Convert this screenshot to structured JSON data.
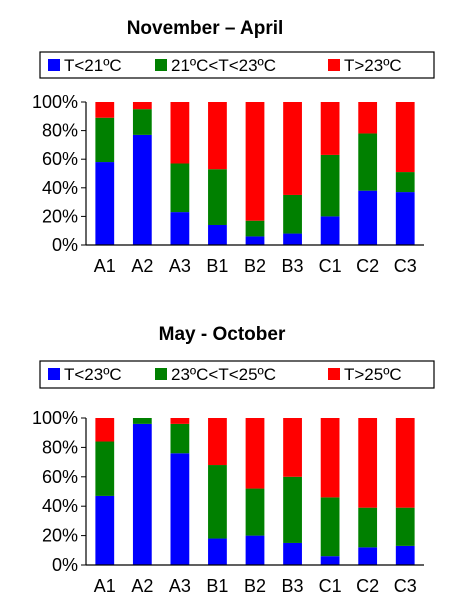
{
  "colors": {
    "blue": "#0000ff",
    "green": "#008000",
    "red": "#ff0000"
  },
  "chart_data": [
    {
      "type": "bar",
      "stacked": true,
      "title": "November – April",
      "categories": [
        "A1",
        "A2",
        "A3",
        "B1",
        "B2",
        "B3",
        "C1",
        "C2",
        "C3"
      ],
      "ylim": [
        0,
        100
      ],
      "yticks": [
        "0%",
        "20%",
        "40%",
        "60%",
        "80%",
        "100%"
      ],
      "legend_position": "top",
      "series": [
        {
          "name": "T<21ºC",
          "color": "#0000ff",
          "values": [
            58,
            77,
            23,
            14,
            6,
            8,
            20,
            38,
            37
          ]
        },
        {
          "name": "21ºC<T<23ºC",
          "color": "#008000",
          "values": [
            31,
            18,
            34,
            39,
            11,
            27,
            43,
            40,
            14
          ]
        },
        {
          "name": "T>23ºC",
          "color": "#ff0000",
          "values": [
            11,
            5,
            43,
            47,
            83,
            65,
            37,
            22,
            49
          ]
        }
      ]
    },
    {
      "type": "bar",
      "stacked": true,
      "title": "May - October",
      "categories": [
        "A1",
        "A2",
        "A3",
        "B1",
        "B2",
        "B3",
        "C1",
        "C2",
        "C3"
      ],
      "ylim": [
        0,
        100
      ],
      "yticks": [
        "0%",
        "20%",
        "40%",
        "60%",
        "80%",
        "100%"
      ],
      "legend_position": "top",
      "series": [
        {
          "name": "T<23ºC",
          "color": "#0000ff",
          "values": [
            47,
            96,
            76,
            18,
            20,
            15,
            6,
            12,
            13
          ]
        },
        {
          "name": "23ºC<T<25ºC",
          "color": "#008000",
          "values": [
            37,
            4,
            20,
            50,
            32,
            45,
            40,
            27,
            26
          ]
        },
        {
          "name": "T>25ºC",
          "color": "#ff0000",
          "values": [
            16,
            0,
            4,
            32,
            48,
            40,
            54,
            61,
            61
          ]
        }
      ]
    }
  ]
}
